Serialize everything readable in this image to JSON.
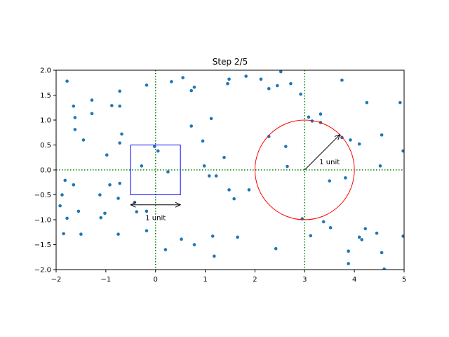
{
  "chart_data": {
    "type": "scatter",
    "title": "Step 2/5",
    "xlim": [
      -2,
      5
    ],
    "ylim": [
      -2,
      2
    ],
    "xticks": [
      -2,
      -1,
      0,
      1,
      2,
      3,
      4,
      5
    ],
    "yticks": [
      -2.0,
      -1.5,
      -1.0,
      -0.5,
      0.0,
      0.5,
      1.0,
      1.5,
      2.0
    ],
    "xtick_labels": [
      "−2",
      "−1",
      "0",
      "1",
      "2",
      "3",
      "4",
      "5"
    ],
    "ytick_labels": [
      "−2.0",
      "−1.5",
      "−1.0",
      "−0.5",
      "0.0",
      "0.5",
      "1.0",
      "1.5",
      "2.0"
    ],
    "grid": false,
    "colors": {
      "points": "#1f77b4",
      "guides": "#008000",
      "square": "#0000ff",
      "circle": "#ff0000",
      "arrows": "#000000"
    },
    "guide_lines": {
      "vertical_x": [
        0,
        3
      ],
      "horizontal_y": [
        0
      ]
    },
    "square": {
      "center": [
        0,
        0
      ],
      "side": 1
    },
    "square_arrow": {
      "from": [
        -0.5,
        -0.7
      ],
      "to": [
        0.5,
        -0.7
      ],
      "label": "1 unit",
      "label_at": [
        0,
        -0.95
      ]
    },
    "circle": {
      "center": [
        3,
        0
      ],
      "radius": 1
    },
    "circle_arrow": {
      "from": [
        3,
        0
      ],
      "to": [
        3.707,
        0.707
      ],
      "label": "1 unit",
      "label_at": [
        3.5,
        0.17
      ]
    },
    "points": [
      [
        -1.78,
        1.78
      ],
      [
        -1.65,
        1.28
      ],
      [
        -1.62,
        1.05
      ],
      [
        -1.62,
        0.81
      ],
      [
        -1.45,
        0.6
      ],
      [
        -1.28,
        1.4
      ],
      [
        -1.28,
        1.13
      ],
      [
        -0.88,
        1.29
      ],
      [
        -0.72,
        1.58
      ],
      [
        -0.72,
        1.28
      ],
      [
        -0.68,
        0.72
      ],
      [
        -0.72,
        0.54
      ],
      [
        -0.98,
        0.3
      ],
      [
        -0.18,
        1.7
      ],
      [
        0.32,
        1.77
      ],
      [
        0.55,
        1.85
      ],
      [
        0.72,
        1.59
      ],
      [
        0.78,
        1.66
      ],
      [
        0.72,
        0.88
      ],
      [
        1.12,
        1.03
      ],
      [
        0.95,
        0.58
      ],
      [
        1.48,
        1.82
      ],
      [
        1.45,
        1.73
      ],
      [
        1.82,
        1.88
      ],
      [
        2.12,
        1.82
      ],
      [
        2.28,
        1.63
      ],
      [
        2.45,
        1.69
      ],
      [
        2.52,
        1.97
      ],
      [
        2.72,
        1.73
      ],
      [
        2.92,
        1.52
      ],
      [
        2.28,
        0.67
      ],
      [
        2.62,
        0.47
      ],
      [
        2.65,
        0.07
      ],
      [
        3.08,
        1.06
      ],
      [
        3.15,
        0.98
      ],
      [
        3.32,
        1.12
      ],
      [
        3.32,
        0.95
      ],
      [
        3.75,
        1.8
      ],
      [
        3.75,
        0.65
      ],
      [
        3.92,
        0.6
      ],
      [
        4.1,
        0.52
      ],
      [
        4.25,
        1.35
      ],
      [
        4.55,
        0.7
      ],
      [
        4.52,
        0.08
      ],
      [
        4.92,
        1.35
      ],
      [
        4.98,
        0.38
      ],
      [
        -0.02,
        0.47
      ],
      [
        0.05,
        0.38
      ],
      [
        -0.28,
        0.08
      ],
      [
        0.25,
        -0.04
      ],
      [
        1.38,
        0.25
      ],
      [
        0.98,
        0.08
      ],
      [
        1.08,
        -0.12
      ],
      [
        1.22,
        -0.12
      ],
      [
        1.48,
        -0.4
      ],
      [
        1.58,
        -0.58
      ],
      [
        1.88,
        -0.4
      ],
      [
        -1.92,
        -0.72
      ],
      [
        -1.88,
        -0.5
      ],
      [
        -1.82,
        -0.21
      ],
      [
        -1.65,
        -0.3
      ],
      [
        -1.55,
        -0.83
      ],
      [
        -1.78,
        -0.97
      ],
      [
        -1.85,
        -1.28
      ],
      [
        -1.5,
        -1.29
      ],
      [
        -1.12,
        -0.5
      ],
      [
        -1.02,
        -0.87
      ],
      [
        -1.1,
        -0.96
      ],
      [
        -0.92,
        -0.3
      ],
      [
        -0.75,
        -0.57
      ],
      [
        -0.72,
        -0.27
      ],
      [
        -0.75,
        -1.29
      ],
      [
        -0.42,
        -0.65
      ],
      [
        -0.38,
        -0.84
      ],
      [
        -0.18,
        -0.83
      ],
      [
        -0.18,
        -1.22
      ],
      [
        0.52,
        -1.39
      ],
      [
        0.78,
        -1.5
      ],
      [
        0.2,
        -1.6
      ],
      [
        1.15,
        -1.33
      ],
      [
        1.18,
        -1.73
      ],
      [
        1.65,
        -1.35
      ],
      [
        2.42,
        -1.58
      ],
      [
        2.95,
        -0.98
      ],
      [
        3.12,
        -1.32
      ],
      [
        3.38,
        -1.04
      ],
      [
        3.52,
        -1.16
      ],
      [
        3.5,
        -0.22
      ],
      [
        3.82,
        -0.16
      ],
      [
        3.88,
        -1.63
      ],
      [
        3.88,
        -1.88
      ],
      [
        4.1,
        -1.35
      ],
      [
        4.15,
        -1.4
      ],
      [
        4.22,
        -1.18
      ],
      [
        4.45,
        -1.27
      ],
      [
        4.55,
        -1.66
      ],
      [
        4.6,
        -1.99
      ],
      [
        4.98,
        -1.33
      ]
    ]
  }
}
